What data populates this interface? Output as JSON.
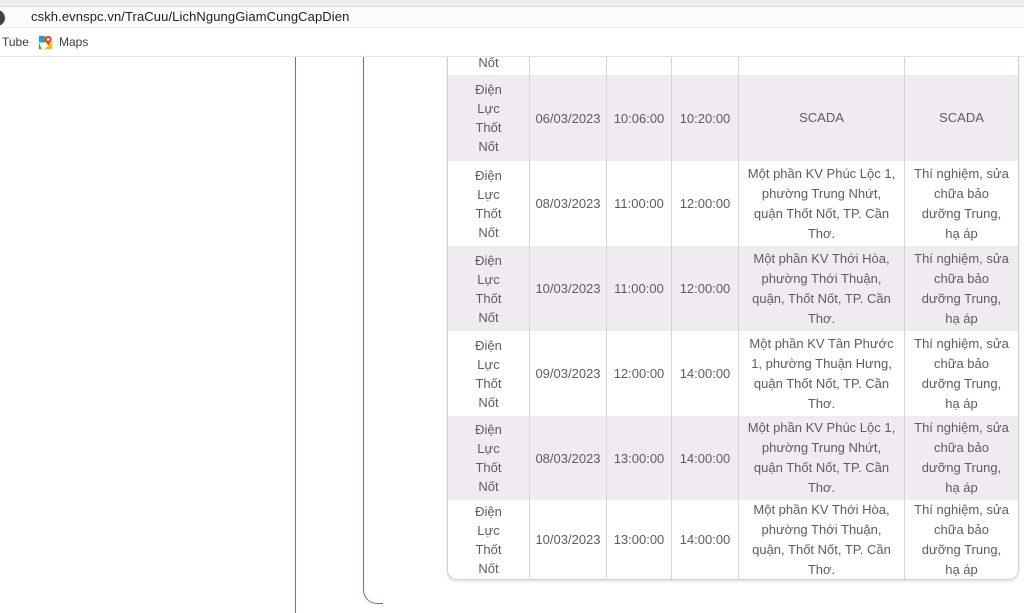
{
  "browser": {
    "url": "cskh.evnspc.vn/TraCuu/LichNgungGiamCungCapDien",
    "bookmarks_bar": {
      "items": [
        {
          "label": "Tube",
          "icon": "youtube-bookmark-partial"
        },
        {
          "label": "Maps",
          "icon": "google-maps"
        }
      ]
    }
  },
  "content": {
    "outage_table": {
      "clipped_row_fragment": "Nốt",
      "rows": [
        {
          "unit": "Điện Lực Thốt Nốt",
          "date": "06/03/2023",
          "start_time": "10:06:00",
          "end_time": "10:20:00",
          "area": "SCADA",
          "reason": "SCADA"
        },
        {
          "unit": "Điện Lực Thốt Nốt",
          "date": "08/03/2023",
          "start_time": "11:00:00",
          "end_time": "12:00:00",
          "area": "Một phần KV Phúc Lộc 1, phường Trung Nhứt, quận Thốt Nốt, TP. Cần Thơ.",
          "reason": "Thí nghiệm, sửa chữa bảo dưỡng Trung, hạ áp"
        },
        {
          "unit": "Điện Lực Thốt Nốt",
          "date": "10/03/2023",
          "start_time": "11:00:00",
          "end_time": "12:00:00",
          "area": "Một phần KV Thới Hòa, phường Thới Thuận, quận, Thốt Nốt, TP. Cần Thơ.",
          "reason": "Thí nghiệm, sửa chữa bảo dưỡng Trung, hạ áp"
        },
        {
          "unit": "Điện Lực Thốt Nốt",
          "date": "09/03/2023",
          "start_time": "12:00:00",
          "end_time": "14:00:00",
          "area": "Một phần KV Tân Phước 1, phường Thuận Hưng, quận Thốt Nốt, TP. Cần Thơ.",
          "reason": "Thí nghiệm, sửa chữa bảo dưỡng Trung, hạ áp"
        },
        {
          "unit": "Điện Lực Thốt Nốt",
          "date": "08/03/2023",
          "start_time": "13:00:00",
          "end_time": "14:00:00",
          "area": "Một phần KV Phúc Lộc 1, phường Trung Nhứt, quận Thốt Nốt, TP. Cần Thơ.",
          "reason": "Thí nghiệm, sửa chữa bảo dưỡng Trung, hạ áp"
        },
        {
          "unit": "Điện Lực Thốt Nốt",
          "date": "10/03/2023",
          "start_time": "13:00:00",
          "end_time": "14:00:00",
          "area": "Một phần KV Thới Hòa, phường Thới Thuận, quận, Thốt Nốt, TP. Cần Thơ.",
          "reason": "Thí nghiệm, sửa chữa bảo dưỡng Trung, hạ áp"
        }
      ]
    },
    "colors": {
      "row_shaded": "#f0ebf1",
      "row_plain": "#ffffff",
      "table_text": "#5f5a66",
      "table_border": "#cdcdcd",
      "panel_border": "#8a62a3"
    }
  }
}
